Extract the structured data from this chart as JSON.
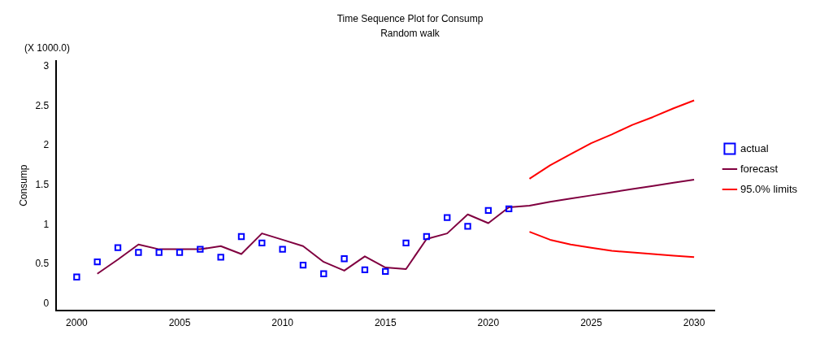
{
  "chart_data": {
    "type": "line",
    "title": "Time Sequence Plot for Consump",
    "subtitle": "Random walk",
    "ylabel": "Consump",
    "annotations": [
      "(X 1000.0)"
    ],
    "xlim": [
      1999,
      2031
    ],
    "xticks": [
      2000,
      2005,
      2010,
      2015,
      2020,
      2025,
      2030
    ],
    "ylim": [
      -0.08,
      3.07
    ],
    "yticks": [
      0,
      0.5,
      1,
      1.5,
      2,
      2.5,
      3
    ],
    "grid": false,
    "legend": "right",
    "series": [
      {
        "name": "actual",
        "type": "scatter",
        "marker": "square",
        "color": "#0000ff",
        "x": [
          2000,
          2001,
          2002,
          2003,
          2004,
          2005,
          2006,
          2007,
          2008,
          2009,
          2010,
          2011,
          2012,
          2013,
          2014,
          2015,
          2016,
          2017,
          2018,
          2019,
          2020,
          2021
        ],
        "values": [
          0.34,
          0.53,
          0.71,
          0.65,
          0.65,
          0.65,
          0.69,
          0.59,
          0.85,
          0.77,
          0.69,
          0.49,
          0.38,
          0.57,
          0.43,
          0.41,
          0.77,
          0.85,
          1.09,
          0.98,
          1.18,
          1.2
        ]
      },
      {
        "name": "forecast",
        "color": "#800040",
        "x": [
          2001,
          2002,
          2003,
          2004,
          2005,
          2006,
          2007,
          2008,
          2009,
          2010,
          2011,
          2012,
          2013,
          2014,
          2015,
          2016,
          2017,
          2018,
          2019,
          2020,
          2021,
          2022,
          2023,
          2024,
          2025,
          2026,
          2027,
          2028,
          2029,
          2030
        ],
        "values": [
          0.38,
          0.56,
          0.75,
          0.69,
          0.69,
          0.69,
          0.73,
          0.63,
          0.89,
          0.81,
          0.73,
          0.53,
          0.42,
          0.6,
          0.46,
          0.44,
          0.82,
          0.89,
          1.13,
          1.02,
          1.22,
          1.24,
          1.29,
          1.33,
          1.37,
          1.41,
          1.45,
          1.49,
          1.53,
          1.57
        ]
      },
      {
        "name": "95.0% limits",
        "color": "#ff0000",
        "x": [
          2022,
          2023,
          2024,
          2025,
          2026,
          2027,
          2028,
          2029,
          2030
        ],
        "values": [
          1.58,
          1.75,
          1.89,
          2.03,
          2.14,
          2.26,
          2.36,
          2.47,
          2.57
        ]
      },
      {
        "color": "#ff0000",
        "x": [
          2022,
          2023,
          2024,
          2025,
          2026,
          2027,
          2028,
          2029,
          2030
        ],
        "values": [
          0.91,
          0.81,
          0.75,
          0.71,
          0.67,
          0.65,
          0.63,
          0.61,
          0.59
        ]
      }
    ]
  }
}
